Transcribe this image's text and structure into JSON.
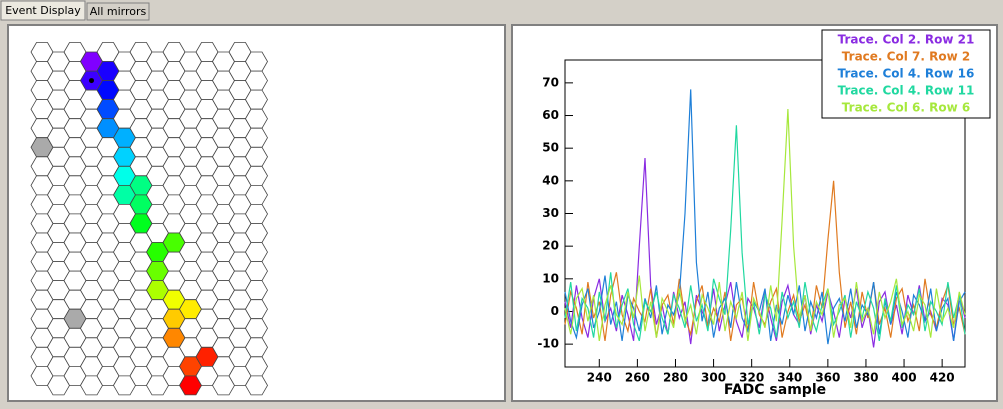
{
  "tabs": [
    "Event Display",
    "All mirrors"
  ],
  "chart_data": {
    "type": "line",
    "xlabel": "FADC sample",
    "xlim": [
      222,
      432
    ],
    "ylim": [
      -17,
      77
    ],
    "xticks": [
      240,
      260,
      280,
      300,
      320,
      340,
      360,
      380,
      400,
      420
    ],
    "yticks": [
      -10,
      0,
      10,
      20,
      30,
      40,
      50,
      60,
      70
    ],
    "x": [
      222,
      225,
      228,
      231,
      234,
      237,
      240,
      243,
      246,
      249,
      252,
      255,
      258,
      261,
      264,
      267,
      270,
      273,
      276,
      279,
      282,
      285,
      288,
      291,
      294,
      297,
      300,
      303,
      306,
      309,
      312,
      315,
      318,
      321,
      324,
      327,
      330,
      333,
      336,
      339,
      342,
      345,
      348,
      351,
      354,
      357,
      360,
      363,
      366,
      369,
      372,
      375,
      378,
      381,
      384,
      387,
      390,
      393,
      396,
      399,
      402,
      405,
      408,
      411,
      414,
      417,
      420,
      423,
      426,
      429,
      432
    ],
    "series": [
      {
        "name": "Trace. Col 2. Row 21",
        "color": "#8a2be2",
        "values": [
          3,
          -5,
          8,
          -2,
          -8,
          4,
          10,
          -3,
          1,
          -6,
          5,
          -1,
          -9,
          20,
          47,
          8,
          -4,
          2,
          -7,
          6,
          -2,
          3,
          -10,
          5,
          0,
          -4,
          7,
          -6,
          2,
          9,
          -3,
          -8,
          4,
          1,
          -5,
          6,
          -2,
          -9,
          3,
          8,
          -1,
          -4,
          5,
          -7,
          2,
          -3,
          6,
          0,
          -8,
          4,
          -2,
          7,
          -5,
          1,
          -11,
          3,
          6,
          -4,
          2,
          -7,
          5,
          -1,
          8,
          -3,
          0,
          -6,
          4,
          2,
          -9,
          5,
          -2
        ]
      },
      {
        "name": "Trace. Col 7. Row 2",
        "color": "#e07a20",
        "values": [
          -4,
          6,
          1,
          -7,
          9,
          -2,
          3,
          -9,
          5,
          12,
          -1,
          -6,
          4,
          0,
          -3,
          7,
          -8,
          2,
          5,
          -4,
          10,
          -2,
          -7,
          3,
          8,
          -5,
          1,
          -3,
          6,
          -9,
          2,
          4,
          -6,
          9,
          -1,
          -4,
          3,
          7,
          -8,
          0,
          5,
          -3,
          2,
          -6,
          8,
          1,
          22,
          40,
          12,
          -5,
          3,
          -7,
          6,
          -2,
          9,
          -4,
          1,
          -8,
          4,
          7,
          -3,
          2,
          -6,
          10,
          -1,
          -5,
          3,
          8,
          -4,
          1,
          -7
        ]
      },
      {
        "name": "Trace. Col 4. Row 16",
        "color": "#1e7fd8",
        "values": [
          6,
          -3,
          -8,
          2,
          7,
          -5,
          0,
          11,
          -4,
          3,
          -9,
          5,
          1,
          -6,
          4,
          -2,
          8,
          -7,
          2,
          -1,
          5,
          30,
          68,
          15,
          -3,
          6,
          -8,
          1,
          4,
          -5,
          9,
          -2,
          -6,
          3,
          0,
          7,
          -9,
          2,
          -4,
          5,
          -1,
          8,
          -6,
          3,
          -2,
          6,
          -10,
          1,
          4,
          -3,
          7,
          -5,
          2,
          -1,
          9,
          -7,
          3,
          -4,
          6,
          0,
          -8,
          5,
          2,
          -3,
          7,
          -6,
          1,
          4,
          -9,
          3,
          6
        ]
      },
      {
        "name": "Trace. Col 4. Row 11",
        "color": "#20d8a0",
        "values": [
          -2,
          9,
          -6,
          4,
          1,
          -8,
          6,
          -3,
          12,
          -5,
          2,
          7,
          -4,
          -9,
          3,
          0,
          6,
          -2,
          -7,
          5,
          1,
          -5,
          8,
          -3,
          2,
          -6,
          10,
          4,
          -1,
          25,
          57,
          18,
          -4,
          3,
          -7,
          5,
          1,
          -8,
          6,
          -2,
          3,
          -5,
          9,
          -1,
          -6,
          2,
          7,
          -4,
          0,
          5,
          -8,
          3,
          -2,
          6,
          1,
          -9,
          4,
          -3,
          8,
          -5,
          2,
          -1,
          7,
          -6,
          3,
          0,
          -4,
          9,
          -2,
          5,
          -7
        ]
      },
      {
        "name": "Trace. Col 6. Row 6",
        "color": "#a6e83c",
        "values": [
          1,
          -7,
          4,
          7,
          -3,
          5,
          -9,
          2,
          8,
          -1,
          -4,
          6,
          -2,
          11,
          -6,
          3,
          -8,
          4,
          0,
          -5,
          7,
          -3,
          2,
          -7,
          5,
          1,
          -4,
          9,
          -6,
          3,
          -2,
          6,
          -9,
          4,
          0,
          -5,
          8,
          -3,
          28,
          62,
          20,
          -2,
          5,
          -6,
          3,
          -1,
          7,
          -8,
          2,
          4,
          -5,
          9,
          -3,
          1,
          -7,
          6,
          -2,
          3,
          10,
          -4,
          0,
          -6,
          5,
          2,
          -8,
          7,
          -3,
          1,
          -5,
          6,
          -1
        ]
      }
    ]
  }
}
